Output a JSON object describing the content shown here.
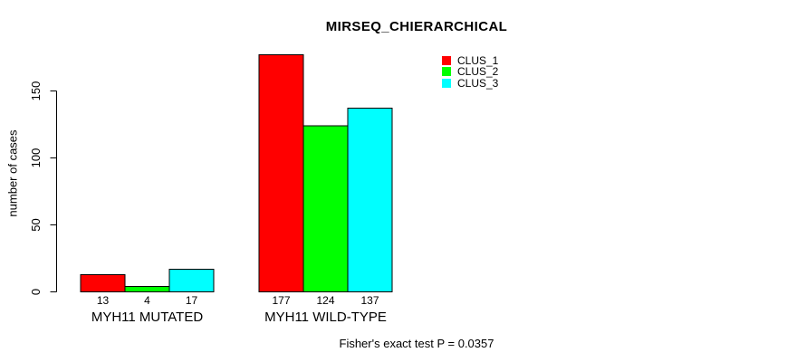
{
  "chart_data": {
    "type": "bar",
    "title": "MIRSEQ_CHIERARCHICAL",
    "ylabel": "number of cases",
    "xlabel": "",
    "categories": [
      "MYH11 MUTATED",
      "MYH11 WILD-TYPE"
    ],
    "series": [
      {
        "name": "CLUS_1",
        "color": "#ff0000",
        "values": [
          13,
          177
        ]
      },
      {
        "name": "CLUS_2",
        "color": "#00ff00",
        "values": [
          4,
          124
        ]
      },
      {
        "name": "CLUS_3",
        "color": "#00ffff",
        "values": [
          17,
          137
        ]
      }
    ],
    "bar_value_labels": [
      [
        13,
        4,
        17
      ],
      [
        177,
        124,
        137
      ]
    ],
    "yticks": [
      0,
      50,
      100,
      150
    ],
    "ylim": [
      0,
      177
    ],
    "grid": false,
    "legend_position": "top-right",
    "bar_border_color": "#000000",
    "axis_color": "#000000",
    "background": "#ffffff",
    "footnote": "Fisher's exact test P = 0.0357"
  }
}
